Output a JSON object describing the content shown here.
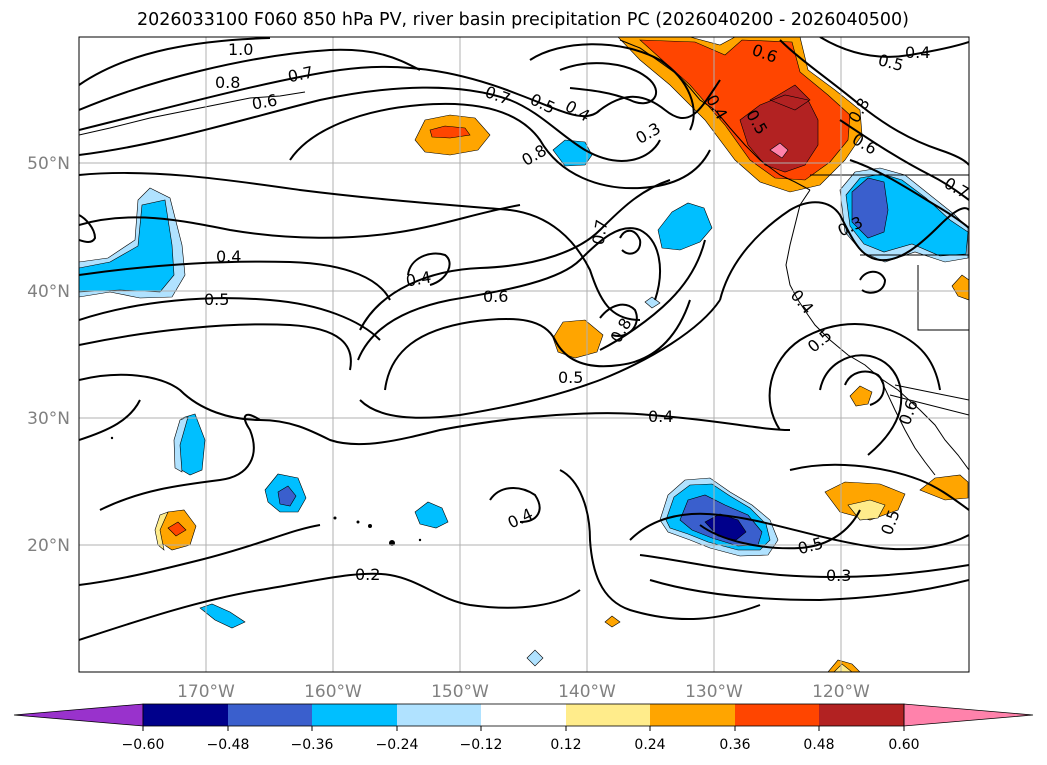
{
  "title": "2026033100 F060 850 hPa PV, river basin precipitation PC (2026040200 - 2026040500)",
  "lat_labels": [
    "50°N",
    "40°N",
    "30°N",
    "20°N"
  ],
  "lon_labels": [
    "170°W",
    "160°W",
    "150°W",
    "140°W",
    "130°W",
    "120°W"
  ],
  "contour_labels": [
    "1.0",
    "0.8",
    "0.7",
    "0.6",
    "0.4",
    "0.5",
    "0.7",
    "0.5",
    "0.4",
    "0.3",
    "0.8",
    "0.6",
    "0.4",
    "0.5",
    "0.8",
    "0.6",
    "0.7",
    "0.3",
    "0.4",
    "0.4",
    "0.6",
    "0.7",
    "0.8",
    "0.5",
    "0.4",
    "0.5",
    "0.4",
    "0.5",
    "0.6",
    "0.4",
    "0.2",
    "0.5",
    "0.3",
    "0.5"
  ],
  "colorbar": {
    "ticks": [
      "−0.60",
      "−0.48",
      "−0.36",
      "−0.24",
      "−0.12",
      "0.12",
      "0.24",
      "0.36",
      "0.48",
      "0.60"
    ],
    "colors": [
      "#9932cc",
      "#00008b",
      "#3a5fcd",
      "#00bfff",
      "#b0e2ff",
      "#ffffff",
      "#ffec8b",
      "#ffa500",
      "#ff4500",
      "#b22222",
      "#ff82ab"
    ]
  }
}
